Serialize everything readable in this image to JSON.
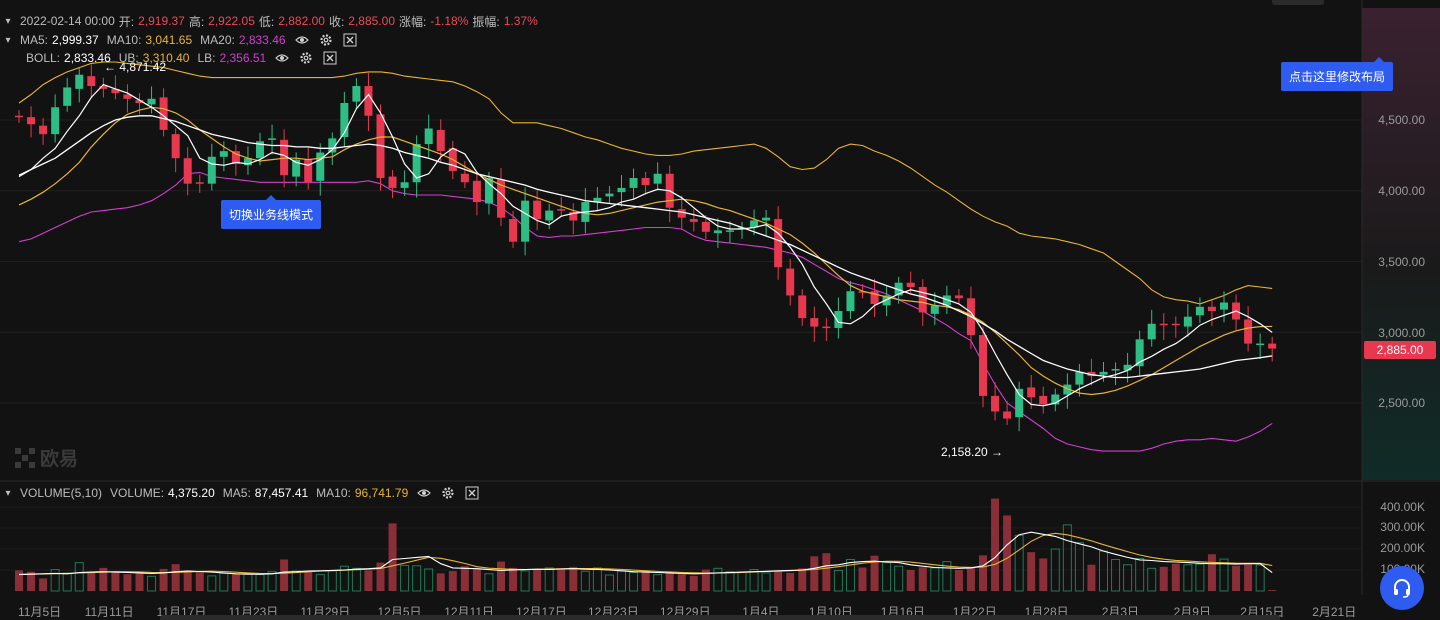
{
  "ohlc": {
    "date": "2022-02-14 00:00",
    "open_label": "开:",
    "open": "2,919.37",
    "high_label": "高:",
    "high": "2,922.05",
    "low_label": "低:",
    "low": "2,882.00",
    "close_label": "收:",
    "close": "2,885.00",
    "change_label": "涨幅:",
    "change": "-1.18%",
    "amp_label": "振幅:",
    "amp": "1.37%"
  },
  "ma": {
    "ma5_label": "MA5:",
    "ma5": "2,999.37",
    "ma10_label": "MA10:",
    "ma10": "3,041.65",
    "ma20_label": "MA20:",
    "ma20": "2,833.46"
  },
  "boll": {
    "label": "BOLL:",
    "mid": "2,833.46",
    "ub_label": "UB:",
    "ub": "3,310.40",
    "lb_label": "LB:",
    "lb": "2,356.51"
  },
  "volume_row": {
    "label": "VOLUME(5,10)",
    "vol_label": "VOLUME:",
    "vol": "4,375.20",
    "ma5_label": "MA5:",
    "ma5": "87,457.41",
    "ma10_label": "MA10:",
    "ma10": "96,741.79"
  },
  "annotations": {
    "high": "← 4,871.42",
    "low": "2,158.20 →"
  },
  "tooltips": {
    "mode": "切换业务线模式",
    "layout": "点击这里修改布局"
  },
  "watermark": "欧易",
  "current_price_tag": "2,885.00",
  "price_axis": [
    "4,500.00",
    "4,000.00",
    "3,500.00",
    "3,000.00",
    "2,500.00"
  ],
  "volume_axis": [
    "400.00K",
    "300.00K",
    "200.00K",
    "100.00K"
  ],
  "date_axis": [
    "11月5日",
    "11月11日",
    "11月17日",
    "11月23日",
    "11月29日",
    "12月5日",
    "12月11日",
    "12月17日",
    "12月23日",
    "12月29日",
    "1月4日",
    "1月10日",
    "1月16日",
    "1月22日",
    "1月28日",
    "2月3日",
    "2月9日",
    "2月15日",
    "2月21日"
  ],
  "icons": [
    "chevron-down-icon",
    "eye-icon",
    "gear-icon",
    "close-icon",
    "headset-icon"
  ],
  "colors": {
    "up": "#2ebd85",
    "down": "#e8384f",
    "ma5": "#ffffff",
    "ma10": "#e8b430",
    "ma20": "#d23ed2",
    "accent": "#2f5cf0"
  },
  "chart_data": {
    "type": "candlestick",
    "x": [
      "11月2日",
      "11月3日",
      "11月4日",
      "11月5日",
      "11月6日",
      "11月7日",
      "11月8日",
      "11月9日",
      "11月10日",
      "11月11日",
      "11月12日",
      "11月13日",
      "11月14日",
      "11月15日",
      "11月16日",
      "11月17日",
      "11月18日",
      "11月19日",
      "11月20日",
      "11月21日",
      "11月22日",
      "11月23日",
      "11月24日",
      "11月25日",
      "11月26日",
      "11月27日",
      "11月28日",
      "11月29日",
      "11月30日",
      "12月1日",
      "12月2日",
      "12月3日",
      "12月4日",
      "12月5日",
      "12月6日",
      "12月7日",
      "12月8日",
      "12月9日",
      "12月10日",
      "12月11日",
      "12月12日",
      "12月13日",
      "12月14日",
      "12月15日",
      "12月16日",
      "12月17日",
      "12月18日",
      "12月19日",
      "12月20日",
      "12月21日",
      "12月22日",
      "12月23日",
      "12月24日",
      "12月25日",
      "12月26日",
      "12月27日",
      "12月28日",
      "12月29日",
      "12月30日",
      "12月31日",
      "1月1日",
      "1月2日",
      "1月3日",
      "1月4日",
      "1月5日",
      "1月6日",
      "1月7日",
      "1月8日",
      "1月9日",
      "1月10日",
      "1月11日",
      "1月12日",
      "1月13日",
      "1月14日",
      "1月15日",
      "1月16日",
      "1月17日",
      "1月18日",
      "1月19日",
      "1月20日",
      "1月21日",
      "1月22日",
      "1月23日",
      "1月24日",
      "1月25日",
      "1月26日",
      "1月27日",
      "1月28日",
      "1月29日",
      "1月30日",
      "1月31日",
      "2月1日",
      "2月2日",
      "2月3日",
      "2月4日",
      "2月5日",
      "2月6日",
      "2月7日",
      "2月8日",
      "2月9日",
      "2月10日",
      "2月11日",
      "2月12日",
      "2月13日",
      "2月14日"
    ],
    "open": [
      4530,
      4520,
      4460,
      4400,
      4600,
      4720,
      4810,
      4740,
      4720,
      4680,
      4640,
      4610,
      4660,
      4400,
      4230,
      4060,
      4050,
      4240,
      4280,
      4180,
      4230,
      4360,
      4360,
      4100,
      4220,
      4070,
      4270,
      4380,
      4630,
      4740,
      4540,
      4100,
      4020,
      4060,
      4330,
      4430,
      4300,
      4120,
      4070,
      3910,
      4080,
      3800,
      3640,
      3930,
      3790,
      3870,
      3850,
      3780,
      3920,
      3960,
      3990,
      4020,
      4090,
      4050,
      4120,
      3870,
      3800,
      3780,
      3700,
      3720,
      3730,
      3740,
      3790,
      3800,
      3450,
      3260,
      3100,
      3040,
      3030,
      3150,
      3290,
      3290,
      3190,
      3260,
      3350,
      3320,
      3130,
      3190,
      3260,
      3240,
      2980,
      2550,
      2440,
      2400,
      2610,
      2550,
      2490,
      2560,
      2630,
      2720,
      2700,
      2730,
      2730,
      2760,
      2950,
      3060,
      3060,
      3040,
      3120,
      3180,
      3160,
      3210,
      3090,
      2920,
      2920
    ],
    "close": [
      4520,
      4470,
      4400,
      4590,
      4730,
      4820,
      4740,
      4720,
      4690,
      4650,
      4620,
      4650,
      4430,
      4230,
      4050,
      4050,
      4240,
      4280,
      4190,
      4230,
      4350,
      4370,
      4110,
      4220,
      4060,
      4270,
      4370,
      4620,
      4740,
      4530,
      4090,
      4020,
      4060,
      4330,
      4440,
      4280,
      4140,
      4060,
      3920,
      4090,
      3810,
      3640,
      3930,
      3800,
      3860,
      3860,
      3790,
      3920,
      3950,
      3980,
      4020,
      4090,
      4040,
      4120,
      3880,
      3810,
      3780,
      3710,
      3720,
      3720,
      3740,
      3790,
      3810,
      3460,
      3260,
      3100,
      3040,
      3030,
      3150,
      3290,
      3280,
      3200,
      3260,
      3350,
      3320,
      3140,
      3190,
      3260,
      3240,
      2980,
      2550,
      2440,
      2390,
      2600,
      2540,
      2490,
      2560,
      2630,
      2720,
      2690,
      2720,
      2740,
      2770,
      2950,
      3060,
      3050,
      3050,
      3110,
      3180,
      3150,
      3210,
      3090,
      2920,
      2920,
      2885
    ],
    "volume": [
      98000,
      92000,
      60000,
      102000,
      85000,
      135000,
      88000,
      110000,
      90000,
      80000,
      86000,
      70000,
      105000,
      128000,
      98000,
      95000,
      72000,
      84000,
      80000,
      83000,
      78000,
      92000,
      150000,
      95000,
      90000,
      78000,
      96000,
      118000,
      108000,
      98000,
      135000,
      322000,
      122000,
      120000,
      105000,
      84000,
      95000,
      118000,
      108000,
      82000,
      140000,
      110000,
      96000,
      103000,
      110000,
      108000,
      115000,
      94000,
      110000,
      76000,
      95000,
      88000,
      98000,
      78000,
      86000,
      80000,
      72000,
      102000,
      108000,
      92000,
      90000,
      102000,
      86000,
      95000,
      86000,
      108000,
      165000,
      180000,
      98000,
      150000,
      112000,
      168000,
      135000,
      118000,
      100000,
      113000,
      110000,
      140000,
      100000,
      113000,
      170000,
      440000,
      360000,
      265000,
      185000,
      155000,
      200000,
      315000,
      230000,
      125000,
      190000,
      150000,
      125000,
      155000,
      108000,
      115000,
      130000,
      125000,
      128000,
      175000,
      152000,
      120000,
      128000,
      124000,
      4375.2
    ],
    "ma5": [
      4100,
      4150,
      4230,
      4300,
      4420,
      4530,
      4660,
      4750,
      4720,
      4690,
      4640,
      4590,
      4530,
      4460,
      4390,
      4230,
      4190,
      4180,
      4200,
      4190,
      4220,
      4270,
      4250,
      4200,
      4180,
      4220,
      4290,
      4410,
      4580,
      4680,
      4550,
      4380,
      4190,
      4090,
      4120,
      4240,
      4300,
      4260,
      4130,
      4050,
      3980,
      3890,
      3840,
      3790,
      3760,
      3820,
      3840,
      3850,
      3860,
      3880,
      3920,
      3940,
      3980,
      4010,
      4000,
      3950,
      3880,
      3810,
      3750,
      3730,
      3730,
      3740,
      3760,
      3700,
      3600,
      3480,
      3320,
      3200,
      3070,
      3060,
      3110,
      3190,
      3230,
      3270,
      3300,
      3280,
      3260,
      3230,
      3200,
      3140,
      3010,
      2850,
      2700,
      2560,
      2490,
      2480,
      2500,
      2550,
      2600,
      2640,
      2680,
      2700,
      2730,
      2790,
      2830,
      2880,
      2920,
      2980,
      3050,
      3090,
      3120,
      3150,
      3110,
      3060,
      2999
    ],
    "ma10": [
      3900,
      3940,
      3990,
      4050,
      4120,
      4200,
      4310,
      4400,
      4480,
      4540,
      4570,
      4590,
      4580,
      4550,
      4500,
      4430,
      4370,
      4310,
      4260,
      4230,
      4210,
      4220,
      4230,
      4230,
      4220,
      4230,
      4240,
      4290,
      4330,
      4360,
      4380,
      4380,
      4350,
      4320,
      4290,
      4260,
      4220,
      4170,
      4120,
      4080,
      4040,
      4010,
      3980,
      3950,
      3920,
      3890,
      3860,
      3840,
      3830,
      3840,
      3860,
      3880,
      3900,
      3920,
      3930,
      3940,
      3930,
      3910,
      3880,
      3860,
      3830,
      3800,
      3770,
      3730,
      3690,
      3630,
      3560,
      3480,
      3400,
      3330,
      3290,
      3270,
      3250,
      3230,
      3220,
      3210,
      3190,
      3180,
      3160,
      3120,
      3070,
      3000,
      2920,
      2840,
      2750,
      2690,
      2640,
      2600,
      2570,
      2560,
      2570,
      2590,
      2620,
      2660,
      2700,
      2750,
      2800,
      2850,
      2900,
      2940,
      2980,
      3010,
      3030,
      3040,
      3041
    ],
    "boll_mid": [
      4110,
      4150,
      4190,
      4230,
      4290,
      4350,
      4410,
      4460,
      4500,
      4520,
      4530,
      4530,
      4510,
      4490,
      4460,
      4430,
      4400,
      4380,
      4360,
      4340,
      4330,
      4320,
      4320,
      4310,
      4310,
      4300,
      4300,
      4310,
      4320,
      4330,
      4320,
      4300,
      4270,
      4250,
      4230,
      4200,
      4180,
      4150,
      4120,
      4100,
      4080,
      4060,
      4040,
      4010,
      3990,
      3970,
      3950,
      3930,
      3920,
      3910,
      3900,
      3890,
      3880,
      3870,
      3860,
      3850,
      3830,
      3810,
      3790,
      3770,
      3740,
      3710,
      3680,
      3650,
      3620,
      3580,
      3540,
      3500,
      3460,
      3420,
      3390,
      3360,
      3330,
      3300,
      3270,
      3250,
      3220,
      3190,
      3150,
      3110,
      3060,
      3010,
      2950,
      2900,
      2850,
      2800,
      2770,
      2740,
      2720,
      2700,
      2690,
      2680,
      2680,
      2690,
      2700,
      2710,
      2720,
      2730,
      2740,
      2760,
      2780,
      2800,
      2810,
      2820,
      2833
    ],
    "boll_ub": [
      4620,
      4680,
      4750,
      4800,
      4840,
      4870,
      4900,
      4910,
      4910,
      4900,
      4890,
      4880,
      4870,
      4850,
      4830,
      4810,
      4800,
      4800,
      4800,
      4800,
      4800,
      4800,
      4800,
      4800,
      4800,
      4800,
      4800,
      4810,
      4830,
      4840,
      4840,
      4830,
      4810,
      4800,
      4790,
      4780,
      4770,
      4740,
      4700,
      4650,
      4550,
      4480,
      4480,
      4480,
      4460,
      4440,
      4410,
      4380,
      4360,
      4330,
      4300,
      4280,
      4260,
      4250,
      4250,
      4260,
      4280,
      4290,
      4300,
      4310,
      4320,
      4330,
      4300,
      4240,
      4170,
      4150,
      4160,
      4220,
      4300,
      4330,
      4320,
      4280,
      4250,
      4210,
      4160,
      4100,
      4040,
      3990,
      3930,
      3870,
      3820,
      3780,
      3750,
      3700,
      3680,
      3670,
      3660,
      3640,
      3620,
      3590,
      3560,
      3500,
      3440,
      3380,
      3300,
      3250,
      3230,
      3220,
      3200,
      3230,
      3260,
      3300,
      3330,
      3320,
      3310
    ],
    "boll_lb": [
      3640,
      3660,
      3700,
      3740,
      3780,
      3820,
      3850,
      3860,
      3870,
      3880,
      3900,
      3930,
      3980,
      4040,
      4120,
      4130,
      4100,
      4090,
      4080,
      4070,
      4060,
      4060,
      4060,
      4060,
      4060,
      4060,
      4060,
      4060,
      4060,
      4070,
      4050,
      4000,
      3980,
      3970,
      3970,
      3970,
      3960,
      3950,
      3940,
      3920,
      3880,
      3820,
      3740,
      3680,
      3670,
      3680,
      3680,
      3690,
      3700,
      3710,
      3720,
      3730,
      3740,
      3740,
      3740,
      3730,
      3680,
      3650,
      3640,
      3630,
      3620,
      3610,
      3600,
      3580,
      3560,
      3530,
      3480,
      3430,
      3380,
      3350,
      3330,
      3300,
      3270,
      3230,
      3190,
      3150,
      3100,
      3050,
      2990,
      2940,
      2780,
      2630,
      2500,
      2440,
      2380,
      2320,
      2250,
      2210,
      2190,
      2170,
      2160,
      2160,
      2160,
      2160,
      2180,
      2210,
      2230,
      2240,
      2240,
      2250,
      2240,
      2230,
      2260,
      2300,
      2356
    ],
    "vol_ma5": [
      78000,
      80000,
      82000,
      84000,
      82000,
      88000,
      90000,
      92000,
      90000,
      88000,
      86000,
      84000,
      86000,
      92000,
      95000,
      93000,
      90000,
      86000,
      82000,
      80000,
      80000,
      82000,
      90000,
      92000,
      95000,
      96000,
      98000,
      100000,
      104000,
      106000,
      110000,
      150000,
      155000,
      160000,
      165000,
      130000,
      110000,
      108000,
      106000,
      102000,
      98000,
      100000,
      102000,
      104000,
      103000,
      105000,
      106000,
      104000,
      103000,
      100000,
      96000,
      92000,
      90000,
      88000,
      86000,
      84000,
      82000,
      84000,
      86000,
      88000,
      90000,
      92000,
      94000,
      96000,
      98000,
      100000,
      108000,
      120000,
      125000,
      135000,
      140000,
      142000,
      138000,
      135000,
      125000,
      118000,
      112000,
      110000,
      108000,
      110000,
      120000,
      160000,
      220000,
      268000,
      280000,
      270000,
      260000,
      240000,
      225000,
      210000,
      190000,
      175000,
      160000,
      148000,
      145000,
      140000,
      138000,
      135000,
      132000,
      130000,
      130000,
      128000,
      130000,
      130000,
      87457
    ]
  }
}
